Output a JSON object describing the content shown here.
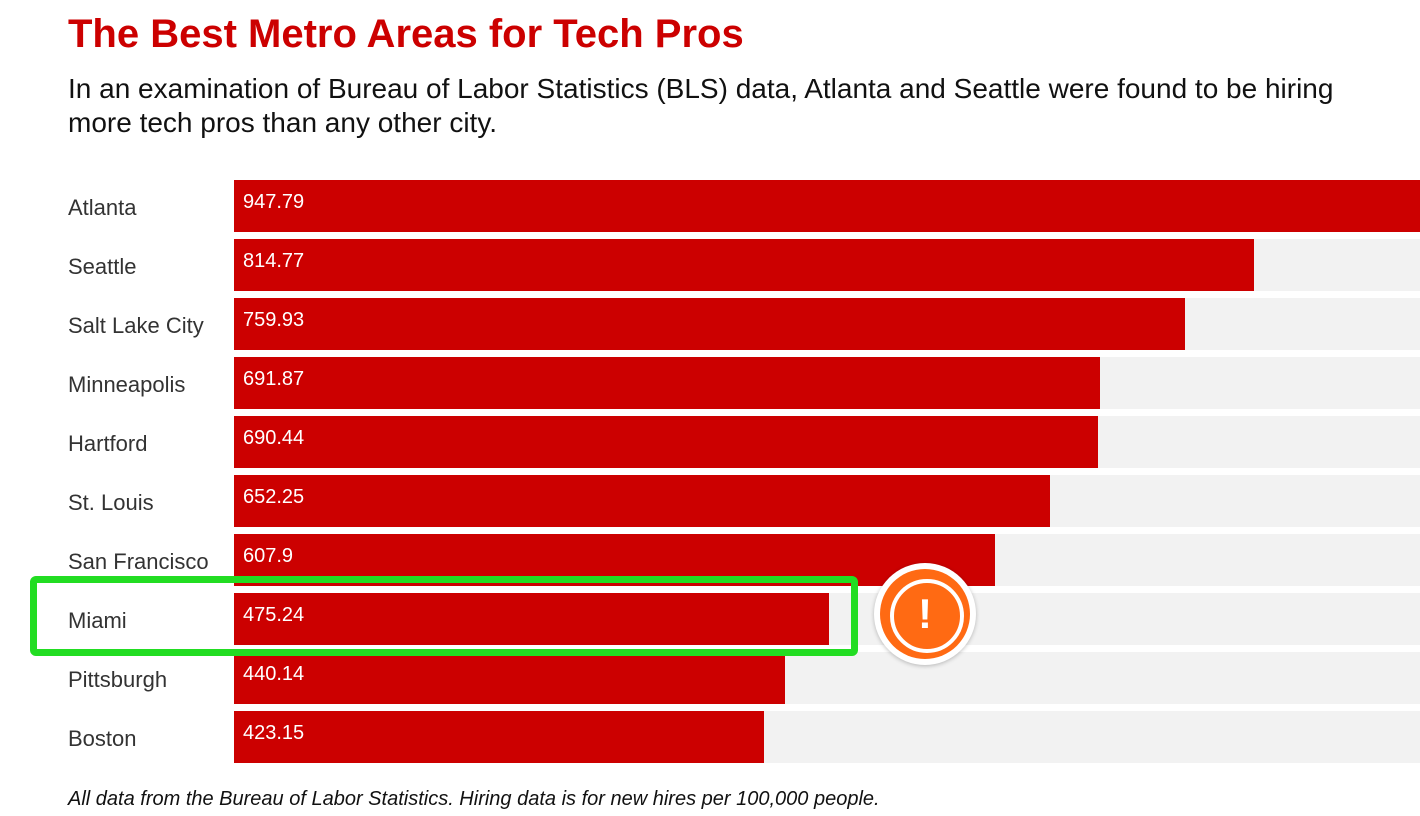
{
  "colors": {
    "title": "#cc0000",
    "bar": "#cc0000",
    "highlight": "#22dd22",
    "alert": "#ff6a13"
  },
  "chart_data": {
    "type": "bar",
    "orientation": "horizontal",
    "title": "The Best Metro Areas for Tech Pros",
    "subtitle": "In an examination of Bureau of Labor Statistics (BLS) data, Atlanta and Seattle were found to be hiring more tech pros than any other city.",
    "footnote": "All data from the Bureau of Labor Statistics. Hiring data is for new hires per 100,000 people.",
    "categories": [
      "Atlanta",
      "Seattle",
      "Salt Lake City",
      "Minneapolis",
      "Hartford",
      "St. Louis",
      "San Francisco",
      "Miami",
      "Pittsburgh",
      "Boston"
    ],
    "values": [
      947.79,
      814.77,
      759.93,
      691.87,
      690.44,
      652.25,
      607.9,
      475.24,
      440.14,
      423.15
    ],
    "value_labels": [
      "947.79",
      "814.77",
      "759.93",
      "691.87",
      "690.44",
      "652.25",
      "607.9",
      "475.24",
      "440.14",
      "423.15"
    ],
    "xlim": [
      0,
      947.79
    ],
    "highlighted_category": "Miami",
    "annotation_icon": "alert-exclamation-icon",
    "annotation_symbol": "!"
  }
}
